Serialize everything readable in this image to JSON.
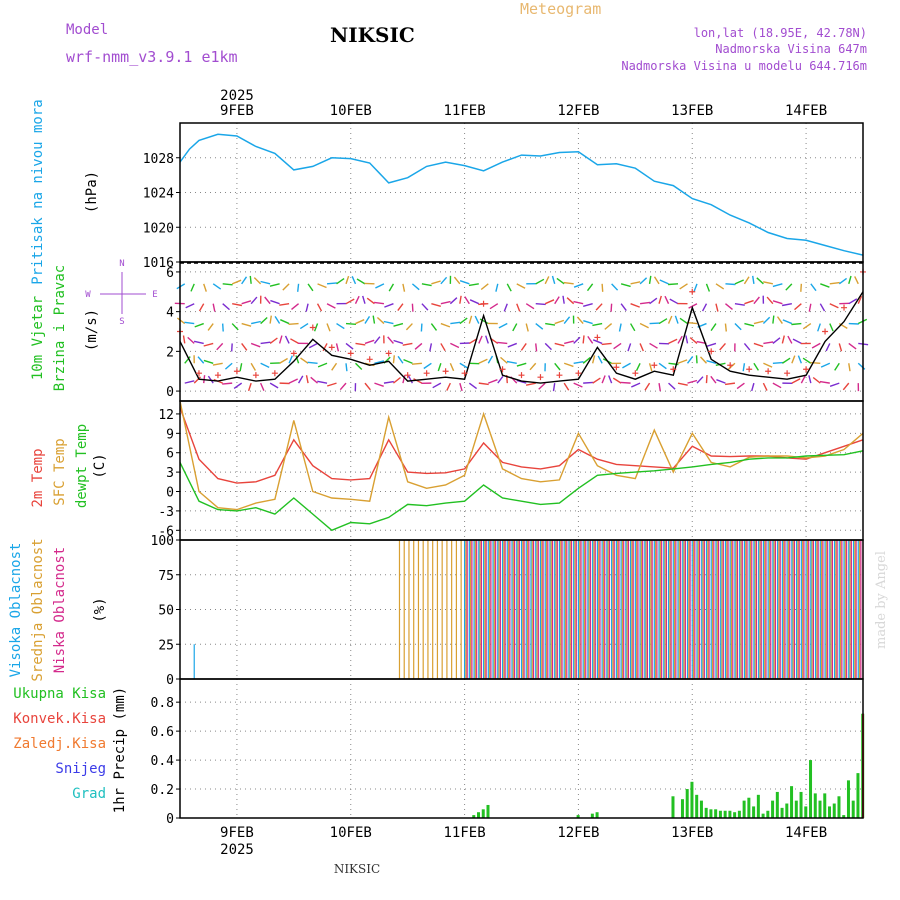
{
  "header": {
    "model_label": "Model",
    "model_name": "wrf-nmm_v3.9.1 e1km",
    "station": "NIKSIC",
    "product": "Meteogram",
    "lonlat": "lon,lat (18.95E, 42.78N)",
    "elevation": "Nadmorska Visina 647m",
    "model_elevation": "Nadmorska Visina u modelu 644.716m"
  },
  "footer": {
    "station": "NIKSIC",
    "credit": "made by Angel"
  },
  "colors": {
    "pressure": "#1aa6e8",
    "temp2m": "#e8443c",
    "sfc_temp": "#d9a032",
    "dewpoint": "#22c022",
    "high_cloud": "#1aa6e8",
    "mid_cloud": "#d9a032",
    "low_cloud": "#d42a8c",
    "total_precip": "#22c022",
    "conv_precip": "#e8443c",
    "freezing": "#f07a30",
    "snow": "#3c3ce8",
    "hail": "#20c0c0",
    "wind_speed": "#000000",
    "gust": "#e8443c",
    "legend_violet": "#a24dd0"
  },
  "chart_data": [
    {
      "type": "line",
      "panel": "pressure",
      "ylabel_lines": [
        "Pritisak na nivou mora",
        "(hPa)"
      ],
      "ylim": [
        1016,
        1032
      ],
      "yticks": [
        1016,
        1020,
        1024,
        1028
      ],
      "x_axis": {
        "type": "time",
        "start": "2025-02-08T12:00",
        "end": "2025-02-14T12:00",
        "top_year": "2025",
        "tick_labels": [
          "9FEB",
          "10FEB",
          "11FEB",
          "12FEB",
          "13FEB",
          "14FEB"
        ]
      },
      "series": [
        {
          "values_x_hours": [
            0,
            2,
            4,
            8,
            12,
            16,
            20,
            24,
            28,
            32,
            36,
            40,
            44,
            48,
            52,
            56,
            60,
            64,
            68,
            72,
            76,
            80,
            84,
            88,
            92,
            96,
            100,
            104,
            108,
            112,
            116,
            120,
            124,
            128,
            132,
            136,
            140,
            144
          ],
          "values": [
            1027.5,
            1029,
            1030,
            1030.7,
            1030.5,
            1029.3,
            1028.5,
            1026.6,
            1027,
            1028,
            1027.9,
            1027.4,
            1025.1,
            1025.7,
            1027,
            1027.5,
            1027.1,
            1026.5,
            1027.5,
            1028.3,
            1028.2,
            1028.6,
            1028.7,
            1027.2,
            1027.3,
            1026.8,
            1025.3,
            1024.8,
            1023.3,
            1022.6,
            1021.4,
            1020.5,
            1019.4,
            1018.7,
            1018.5,
            1017.9,
            1017.3,
            1016.8
          ]
        }
      ],
      "grid": true
    },
    {
      "type": "line",
      "panel": "wind",
      "ylabel_lines": [
        "10m Vjetar",
        "Brzina i Pravac",
        "(m/s)"
      ],
      "compass": {
        "n": "N",
        "s": "S",
        "w": "W",
        "e": "E"
      },
      "ylim": [
        -0.5,
        6.5
      ],
      "yticks": [
        0,
        2,
        4,
        6
      ],
      "series": [
        {
          "name": "wind speed",
          "values_x_hours": [
            0,
            4,
            8,
            12,
            16,
            20,
            24,
            28,
            32,
            36,
            40,
            44,
            48,
            52,
            56,
            60,
            64,
            68,
            72,
            76,
            80,
            84,
            88,
            92,
            96,
            100,
            104,
            108,
            112,
            116,
            120,
            124,
            128,
            132,
            136,
            140,
            144
          ],
          "values": [
            2.5,
            0.6,
            0.5,
            0.7,
            0.5,
            0.6,
            1.5,
            2.6,
            1.8,
            1.6,
            1.3,
            1.5,
            0.5,
            0.6,
            0.7,
            0.6,
            3.8,
            0.8,
            0.5,
            0.4,
            0.5,
            0.6,
            2.2,
            0.9,
            0.6,
            1.0,
            0.8,
            4.2,
            1.6,
            1.0,
            0.8,
            0.7,
            0.6,
            0.8,
            2.5,
            3.5,
            5.0
          ]
        },
        {
          "name": "gust",
          "values_x_hours": [
            0,
            4,
            8,
            12,
            16,
            20,
            24,
            28,
            32,
            36,
            40,
            44,
            48,
            52,
            56,
            60,
            64,
            68,
            72,
            76,
            80,
            84,
            88,
            92,
            96,
            100,
            104,
            108,
            112,
            116,
            120,
            124,
            128,
            132,
            136,
            140,
            144
          ],
          "values": [
            3.0,
            0.9,
            0.8,
            1.0,
            0.8,
            0.9,
            1.9,
            3.2,
            2.2,
            1.9,
            1.6,
            1.9,
            0.8,
            0.9,
            1.0,
            0.9,
            4.4,
            1.1,
            0.8,
            0.7,
            0.8,
            0.9,
            2.7,
            1.2,
            0.9,
            1.3,
            1.1,
            5.0,
            2.0,
            1.3,
            1.1,
            1.0,
            0.9,
            1.1,
            3.0,
            4.2,
            6.0
          ]
        }
      ],
      "grid": true
    },
    {
      "type": "line",
      "panel": "temperature",
      "ylabel_lines": [
        "2m Temp",
        "SFC Temp",
        "dewpt Temp",
        "(C)"
      ],
      "ylim": [
        -7.5,
        14
      ],
      "yticks": [
        -6,
        -3,
        0,
        3,
        6,
        9,
        12
      ],
      "series": [
        {
          "name": "2m Temp",
          "values_x_hours": [
            0,
            4,
            8,
            12,
            16,
            20,
            24,
            28,
            32,
            36,
            40,
            44,
            48,
            52,
            56,
            60,
            64,
            68,
            72,
            76,
            80,
            84,
            88,
            92,
            96,
            100,
            104,
            108,
            112,
            116,
            120,
            124,
            128,
            132,
            136,
            140,
            144
          ],
          "values": [
            13,
            5,
            2,
            1.3,
            1.5,
            2.5,
            8,
            4,
            2,
            1.8,
            2,
            8,
            3,
            2.8,
            2.9,
            3.5,
            7.5,
            4.5,
            3.8,
            3.5,
            4,
            6.5,
            5,
            4.2,
            4,
            3.8,
            3.6,
            7,
            5.5,
            5.4,
            5.5,
            5.5,
            5.2,
            5,
            6,
            7,
            8
          ]
        },
        {
          "name": "SFC Temp",
          "values_x_hours": [
            0,
            4,
            8,
            12,
            16,
            20,
            24,
            28,
            32,
            36,
            40,
            44,
            48,
            52,
            56,
            60,
            64,
            68,
            72,
            76,
            80,
            84,
            88,
            92,
            96,
            100,
            104,
            108,
            112,
            116,
            120,
            124,
            128,
            132,
            136,
            140,
            144
          ],
          "values": [
            14,
            0,
            -2.5,
            -2.8,
            -1.8,
            -1.2,
            11,
            0,
            -1,
            -1.2,
            -1.5,
            11.5,
            1.5,
            0.5,
            1.0,
            2.5,
            12,
            3.5,
            2.0,
            1.5,
            1.8,
            9,
            4,
            2.5,
            2.0,
            9.5,
            3.0,
            9.0,
            4.5,
            3.8,
            5.3,
            5.5,
            5.5,
            5.2,
            5.5,
            6.5,
            9
          ]
        },
        {
          "name": "dewpt Temp",
          "values_x_hours": [
            0,
            4,
            8,
            12,
            16,
            20,
            24,
            28,
            32,
            36,
            40,
            44,
            48,
            52,
            56,
            60,
            64,
            68,
            72,
            76,
            80,
            84,
            88,
            92,
            96,
            100,
            104,
            108,
            112,
            116,
            120,
            124,
            128,
            132,
            136,
            140,
            144
          ],
          "values": [
            4.5,
            -1.5,
            -2.8,
            -3.0,
            -2.5,
            -3.5,
            -1,
            -3.5,
            -6,
            -4.8,
            -5,
            -4,
            -2,
            -2.2,
            -1.8,
            -1.5,
            1,
            -1,
            -1.5,
            -2,
            -1.8,
            0.5,
            2.5,
            2.8,
            3,
            3.2,
            3.5,
            3.8,
            4.2,
            4.5,
            5.0,
            5.2,
            5.2,
            5.5,
            5.6,
            5.7,
            6.3
          ]
        }
      ],
      "grid": true
    },
    {
      "type": "bar",
      "panel": "cloud",
      "ylabel_lines": [
        "Visoka Oblacnost",
        "Srednja Oblacnost",
        "Niska Oblacnost",
        "(%)"
      ],
      "ylim": [
        0,
        100
      ],
      "yticks": [
        0,
        25,
        50,
        75,
        100
      ],
      "hourly": {
        "segments": [
          {
            "from": 0,
            "to": 3,
            "high": 0,
            "mid": 0,
            "low": 0
          },
          {
            "from": 3,
            "to": 4,
            "high": 25,
            "mid": 0,
            "low": 0
          },
          {
            "from": 4,
            "to": 46,
            "high": 0,
            "mid": 0,
            "low": 0
          },
          {
            "from": 46,
            "to": 60,
            "high": 0,
            "mid": 100,
            "low": 0
          },
          {
            "from": 60,
            "to": 104,
            "high": 100,
            "mid": 100,
            "low": 100
          },
          {
            "from": 104,
            "to": 128,
            "high": 100,
            "mid": 100,
            "low": 100
          },
          {
            "from": 128,
            "to": 144,
            "high": 100,
            "mid": 100,
            "low": 100
          }
        ]
      },
      "grid": true
    },
    {
      "type": "bar",
      "panel": "precipitation",
      "ylabel_lines": [
        "1hr Precip (mm)"
      ],
      "legend": [
        "Ukupna Kisa",
        "Konvek.Kisa",
        "Zaledj.Kisa",
        "Snijeg",
        "Grad"
      ],
      "ylim": [
        0,
        0.96
      ],
      "yticks": [
        0,
        0.2,
        0.4,
        0.6,
        0.8
      ],
      "x_axis": {
        "tick_labels": [
          "9FEB",
          "10FEB",
          "11FEB",
          "12FEB",
          "13FEB",
          "14FEB"
        ],
        "bottom_year": "2025"
      },
      "total_hours": [
        62,
        63,
        64,
        65,
        84,
        87,
        88,
        104,
        106,
        107,
        108,
        109,
        110,
        111,
        112,
        113,
        114,
        115,
        116,
        117,
        118,
        119,
        120,
        121,
        122,
        123,
        124,
        125,
        126,
        127,
        128,
        129,
        130,
        131,
        132,
        133,
        134,
        135,
        136,
        137,
        138,
        139,
        140,
        141,
        142,
        143,
        144
      ],
      "total_values": [
        0.02,
        0.04,
        0.06,
        0.09,
        0.02,
        0.03,
        0.04,
        0.15,
        0.13,
        0.2,
        0.25,
        0.16,
        0.12,
        0.07,
        0.06,
        0.06,
        0.05,
        0.05,
        0.05,
        0.04,
        0.05,
        0.12,
        0.14,
        0.08,
        0.16,
        0.03,
        0.05,
        0.12,
        0.18,
        0.07,
        0.1,
        0.22,
        0.12,
        0.18,
        0.08,
        0.4,
        0.17,
        0.12,
        0.17,
        0.08,
        0.1,
        0.15,
        0.02,
        0.26,
        0.12,
        0.31,
        0.72
      ],
      "convective_hours": [
        144
      ],
      "convective_values": [
        0.72
      ],
      "grid": true
    }
  ]
}
